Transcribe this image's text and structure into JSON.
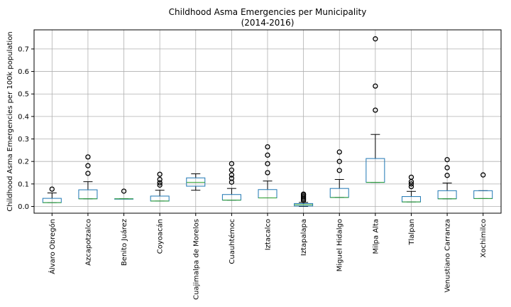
{
  "chart_data": {
    "type": "box",
    "title": "Childhood Asma Emergencies per Municipality",
    "subtitle": "(2014-2016)",
    "xlabel": "",
    "ylabel": "Childhood Asma Emergencies per 100k population",
    "ylim": [
      -0.03,
      0.785
    ],
    "yticks": [
      "0.0",
      "0.1",
      "0.2",
      "0.3",
      "0.4",
      "0.5",
      "0.6",
      "0.7"
    ],
    "grid": true,
    "colors": {
      "box": "#1f77b4",
      "median": "#2ca02c",
      "whisker": "#000000",
      "flier": "#000000",
      "grid": "#b0b0b0"
    },
    "categories": [
      "Álvaro Obregón",
      "Azcapotzalco",
      "Benito Juárez",
      "Coyoacán",
      "Cuajimalpa de Morelos",
      "Cuauhtémoc",
      "Iztacalco",
      "Iztapalapa",
      "Miguel Hidalgo",
      "Milpa Alta",
      "Tlalpan",
      "Venustiano Carranza",
      "Xochimilco"
    ],
    "boxes": [
      {
        "whislo": 0.017,
        "q1": 0.017,
        "med": 0.017,
        "q3": 0.036,
        "whishi": 0.06,
        "fliers": [
          0.077
        ]
      },
      {
        "whislo": 0.034,
        "q1": 0.034,
        "med": 0.034,
        "q3": 0.074,
        "whishi": 0.11,
        "fliers": [
          0.147,
          0.181,
          0.22
        ]
      },
      {
        "whislo": 0.034,
        "q1": 0.034,
        "med": 0.034,
        "q3": 0.034,
        "whishi": 0.034,
        "fliers": [
          0.068
        ]
      },
      {
        "whislo": 0.024,
        "q1": 0.024,
        "med": 0.024,
        "q3": 0.046,
        "whishi": 0.072,
        "fliers": [
          0.095,
          0.105,
          0.12,
          0.143
        ]
      },
      {
        "whislo": 0.072,
        "q1": 0.09,
        "med": 0.107,
        "q3": 0.127,
        "whishi": 0.145,
        "fliers": []
      },
      {
        "whislo": 0.028,
        "q1": 0.028,
        "med": 0.028,
        "q3": 0.053,
        "whishi": 0.08,
        "fliers": [
          0.108,
          0.125,
          0.14,
          0.162,
          0.19
        ]
      },
      {
        "whislo": 0.038,
        "q1": 0.038,
        "med": 0.038,
        "q3": 0.075,
        "whishi": 0.113,
        "fliers": [
          0.15,
          0.19,
          0.228,
          0.265
        ]
      },
      {
        "whislo": 0.0,
        "q1": 0.002,
        "med": 0.008,
        "q3": 0.013,
        "whishi": 0.018,
        "fliers": [
          0.026,
          0.032,
          0.038,
          0.044,
          0.05,
          0.055
        ]
      },
      {
        "whislo": 0.04,
        "q1": 0.04,
        "med": 0.04,
        "q3": 0.08,
        "whishi": 0.12,
        "fliers": [
          0.16,
          0.2,
          0.242
        ]
      },
      {
        "whislo": 0.107,
        "q1": 0.107,
        "med": 0.107,
        "q3": 0.213,
        "whishi": 0.32,
        "fliers": [
          0.428,
          0.535,
          0.745
        ]
      },
      {
        "whislo": 0.02,
        "q1": 0.02,
        "med": 0.02,
        "q3": 0.044,
        "whishi": 0.067,
        "fliers": [
          0.088,
          0.1,
          0.11,
          0.13
        ]
      },
      {
        "whislo": 0.034,
        "q1": 0.034,
        "med": 0.034,
        "q3": 0.07,
        "whishi": 0.104,
        "fliers": [
          0.138,
          0.172,
          0.208
        ]
      },
      {
        "whislo": 0.035,
        "q1": 0.035,
        "med": 0.035,
        "q3": 0.07,
        "whishi": 0.07,
        "fliers": [
          0.14
        ]
      }
    ]
  }
}
